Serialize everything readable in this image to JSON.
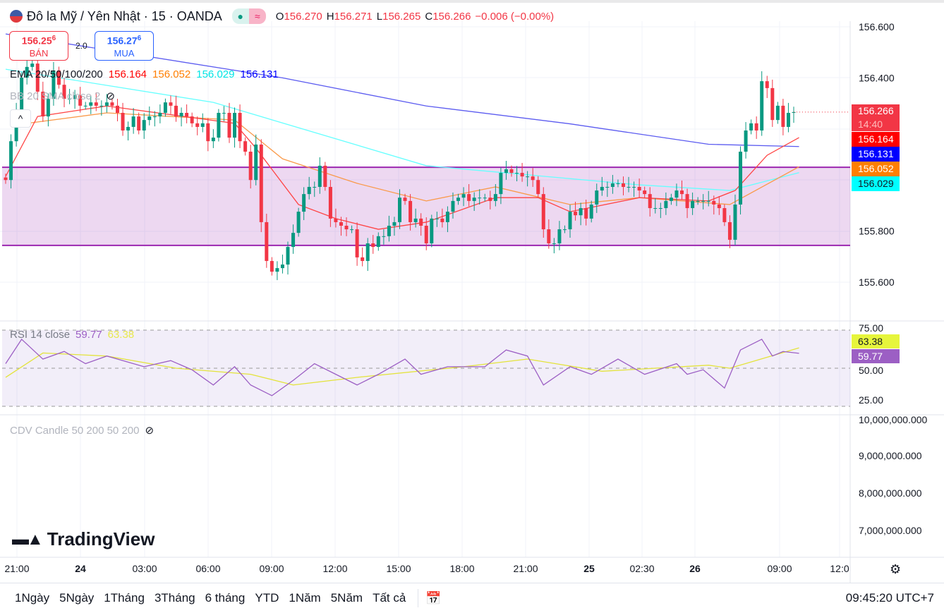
{
  "header": {
    "symbol": "Đô la Mỹ / Yên Nhật · 15 · OANDA",
    "o_label": "O",
    "o": "156.270",
    "h_label": "H",
    "h": "156.271",
    "l_label": "L",
    "l": "156.265",
    "c_label": "C",
    "c": "156.266",
    "change": "−0.006 (−0.00%)"
  },
  "trade": {
    "sell_price": "156.25",
    "sell_sup": "6",
    "sell_label": "BÁN",
    "spread": "2.0",
    "buy_price": "156.27",
    "buy_sup": "6",
    "buy_label": "MUA"
  },
  "legend": {
    "ema_title": "EMA 20/50/100/200",
    "ema20": "156.164",
    "ema50": "156.052",
    "ema100": "156.029",
    "ema200": "156.131",
    "bb": "BB 20 SMA close 2",
    "rsi_title": "RSI 14 close",
    "rsi": "59.77",
    "rsi_ma": "63.38",
    "cdv": "CDV Candle 50 200 50 200"
  },
  "price_labels": {
    "last": "156.266",
    "countdown": "14:40",
    "ema20": "156.164",
    "ema200": "156.131",
    "ema50": "156.052",
    "ema100": "156.029"
  },
  "rsi_labels": {
    "ma": "63.38",
    "rsi": "59.77",
    "l75": "75.00",
    "l50": "50.00",
    "l25": "25.00"
  },
  "cdv_axis": [
    "10,000,000.000",
    "9,000,000.000",
    "8,000,000.000",
    "7,000,000.000"
  ],
  "logo": "TradingView",
  "time_axis": [
    "21:00",
    "24",
    "03:00",
    "06:00",
    "09:00",
    "12:00",
    "15:00",
    "18:00",
    "21:00",
    "25",
    "02:30",
    "26",
    "09:00",
    "12:0"
  ],
  "ranges": [
    "1Ngày",
    "5Ngày",
    "1Tháng",
    "3Tháng",
    "6 tháng",
    "YTD",
    "1Năm",
    "5Năm",
    "Tất cả"
  ],
  "clock": "09:45:20 UTC+7",
  "colors": {
    "up": "#089981",
    "down": "#f23645",
    "ema20": "#ff0000",
    "ema50": "#ff7f00",
    "ema100": "#00ffff",
    "ema200": "#0000ff",
    "box": "#9c27b0"
  },
  "chart_data": {
    "type": "candlestick",
    "title": "USD/JPY 15m OANDA",
    "y_axis_ticks": [
      "156.600",
      "156.400",
      "155.800",
      "155.600"
    ],
    "ylim": [
      155.5,
      156.65
    ],
    "closes": [
      156.0,
      156.152,
      156.263,
      156.401,
      156.443,
      156.456,
      156.346,
      156.249,
      156.318,
      156.429,
      156.373,
      156.318,
      156.318,
      156.332,
      156.291,
      156.291,
      156.304,
      156.291,
      156.291,
      156.304,
      156.291,
      156.263,
      156.194,
      156.208,
      156.249,
      156.194,
      156.235,
      156.249,
      156.249,
      156.263,
      156.304,
      156.291,
      156.249,
      156.263,
      156.249,
      156.222,
      156.208,
      156.222,
      156.152,
      156.166,
      156.263,
      156.263,
      156.166,
      156.263,
      156.152,
      156.111,
      156.0,
      156.139,
      155.835,
      155.683,
      155.641,
      155.655,
      155.669,
      155.738,
      155.793,
      155.876,
      155.945,
      155.973,
      155.973,
      156.056,
      155.973,
      155.849,
      155.835,
      155.821,
      155.807,
      155.807,
      155.697,
      155.683,
      155.752,
      155.738,
      155.78,
      155.78,
      155.821,
      155.835,
      155.931,
      155.918,
      155.835,
      155.849,
      155.821,
      155.752,
      155.849,
      155.849,
      155.835,
      155.876,
      155.918,
      155.931,
      155.945,
      155.918,
      155.931,
      155.931,
      155.931,
      155.918,
      155.945,
      156.028,
      156.042,
      156.028,
      156.028,
      156.014,
      156.014,
      156.0,
      155.945,
      155.807,
      155.752,
      155.752,
      155.807,
      155.807,
      155.876,
      155.862,
      155.89,
      155.849,
      155.904,
      155.959,
      155.973,
      155.973,
      155.987,
      155.987,
      155.973,
      155.973,
      155.973,
      155.959,
      155.945,
      155.89,
      155.89,
      155.89,
      155.918,
      155.931,
      155.959,
      155.945,
      155.89,
      155.918,
      155.918,
      155.918,
      155.918,
      155.904,
      155.89,
      155.835,
      155.766,
      155.904,
      156.111,
      156.194,
      156.222,
      156.194,
      156.387,
      156.36,
      156.235,
      156.291,
      156.208,
      156.263,
      156.266
    ],
    "ema20": [
      [
        0,
        156.014
      ],
      [
        6,
        156.249
      ],
      [
        19,
        156.29
      ],
      [
        43,
        156.222
      ],
      [
        47,
        156.125
      ],
      [
        55,
        155.904
      ],
      [
        62,
        155.849
      ],
      [
        70,
        155.807
      ],
      [
        79,
        155.835
      ],
      [
        92,
        155.931
      ],
      [
        100,
        155.931
      ],
      [
        106,
        155.876
      ],
      [
        119,
        155.931
      ],
      [
        132,
        155.918
      ],
      [
        137,
        155.959
      ],
      [
        143,
        156.097
      ],
      [
        149,
        156.166
      ]
    ],
    "ema50": [
      [
        4,
        156.222
      ],
      [
        19,
        156.263
      ],
      [
        43,
        156.235
      ],
      [
        52,
        156.083
      ],
      [
        66,
        155.987
      ],
      [
        79,
        155.918
      ],
      [
        92,
        155.973
      ],
      [
        106,
        155.904
      ],
      [
        119,
        155.931
      ],
      [
        136,
        155.904
      ],
      [
        149,
        156.052
      ]
    ],
    "ema100": [
      [
        0,
        156.434
      ],
      [
        39,
        156.304
      ],
      [
        79,
        156.056
      ],
      [
        119,
        155.981
      ],
      [
        136,
        155.959
      ],
      [
        149,
        156.029
      ]
    ],
    "ema200": [
      [
        0,
        156.572
      ],
      [
        52,
        156.4
      ],
      [
        79,
        156.29
      ],
      [
        106,
        156.22
      ],
      [
        132,
        156.14
      ],
      [
        149,
        156.131
      ]
    ],
    "range_box": [
      155.744,
      156.05
    ],
    "rsi": {
      "ylim": [
        25,
        75
      ],
      "values": [
        [
          0,
          53
        ],
        [
          3,
          69
        ],
        [
          7,
          56
        ],
        [
          11,
          61
        ],
        [
          15,
          53
        ],
        [
          19,
          58
        ],
        [
          26,
          51
        ],
        [
          31,
          55
        ],
        [
          35,
          49
        ],
        [
          39,
          39
        ],
        [
          43,
          51
        ],
        [
          46,
          39
        ],
        [
          50,
          32
        ],
        [
          54,
          42
        ],
        [
          58,
          53
        ],
        [
          62,
          46
        ],
        [
          66,
          39
        ],
        [
          70,
          46
        ],
        [
          75,
          56
        ],
        [
          78,
          46
        ],
        [
          83,
          51
        ],
        [
          90,
          51
        ],
        [
          94,
          62
        ],
        [
          98,
          58
        ],
        [
          101,
          39
        ],
        [
          106,
          51
        ],
        [
          110,
          46
        ],
        [
          115,
          56
        ],
        [
          120,
          46
        ],
        [
          126,
          53
        ],
        [
          128,
          46
        ],
        [
          131,
          49
        ],
        [
          135,
          37
        ],
        [
          138,
          62
        ],
        [
          142,
          69
        ],
        [
          144,
          58
        ],
        [
          146,
          61
        ],
        [
          149,
          59.77
        ]
      ],
      "ma": [
        [
          0,
          44
        ],
        [
          7,
          60
        ],
        [
          19,
          58
        ],
        [
          32,
          50
        ],
        [
          46,
          46
        ],
        [
          54,
          39
        ],
        [
          66,
          44
        ],
        [
          86,
          51
        ],
        [
          98,
          56
        ],
        [
          112,
          48
        ],
        [
          132,
          52
        ],
        [
          136,
          50
        ],
        [
          149,
          63.38
        ]
      ]
    }
  }
}
